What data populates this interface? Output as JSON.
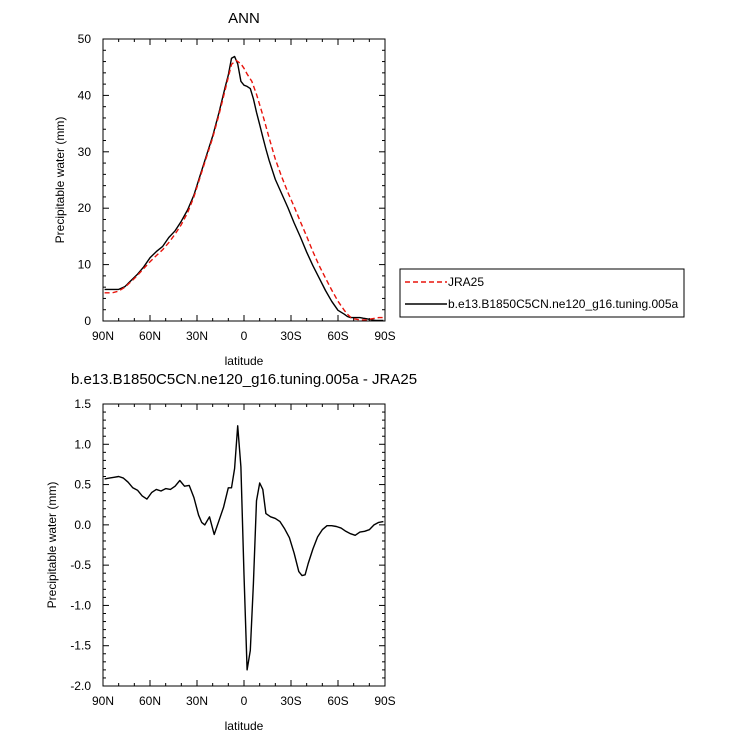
{
  "chart_data": [
    {
      "type": "line",
      "title": "ANN",
      "xlabel": "latitude",
      "ylabel": "Precipitable water (mm)",
      "xlim": [
        90,
        -90
      ],
      "ylim": [
        0,
        50
      ],
      "x_ticks": [
        90,
        60,
        30,
        0,
        -30,
        -60,
        -90
      ],
      "x_tick_labels": [
        "90N",
        "60N",
        "30N",
        "0",
        "30S",
        "60S",
        "90S"
      ],
      "y_ticks": [
        0,
        10,
        20,
        30,
        40,
        50
      ],
      "y_tick_labels": [
        "0",
        "10",
        "20",
        "30",
        "40",
        "50"
      ],
      "legend_position": "right",
      "series": [
        {
          "name": "JRA25",
          "color": "#e8140c",
          "dash": "dashed",
          "x": [
            89,
            84,
            80,
            76,
            72,
            68,
            64,
            60,
            56,
            52,
            48,
            44,
            40,
            36,
            32,
            28,
            24,
            20,
            16,
            12,
            8,
            5,
            2,
            0,
            -2,
            -5,
            -8,
            -12,
            -16,
            -20,
            -24,
            -28,
            -32,
            -36,
            -40,
            -44,
            -48,
            -52,
            -56,
            -60,
            -64,
            -66,
            -68,
            -70,
            -72,
            -74,
            -76,
            -78,
            -80,
            -82,
            -84,
            -86,
            -89
          ],
          "y": [
            5.0,
            5.0,
            5.3,
            6.0,
            7.0,
            8.1,
            9.3,
            10.5,
            11.6,
            12.6,
            13.9,
            15.4,
            17.1,
            19.2,
            22.0,
            25.5,
            29.0,
            32.5,
            36.5,
            41.0,
            45.5,
            46.2,
            45.6,
            44.8,
            43.8,
            42.5,
            40.2,
            36.5,
            32.5,
            28.7,
            25.6,
            22.8,
            20.3,
            17.6,
            15.0,
            12.3,
            9.8,
            7.6,
            5.5,
            3.5,
            1.9,
            1.2,
            0.7,
            0.4,
            0.3,
            0.2,
            0.2,
            0.2,
            0.3,
            0.4,
            0.5,
            0.6,
            0.6
          ]
        },
        {
          "name": "b.e13.B1850C5CN.ne120_g16.tuning.005a",
          "color": "#000000",
          "dash": "solid",
          "x": [
            89,
            84,
            80,
            76,
            72,
            68,
            64,
            60,
            56,
            52,
            48,
            44,
            40,
            36,
            32,
            28,
            24,
            20,
            16,
            12,
            10,
            8,
            6,
            4,
            2,
            0,
            -2,
            -4,
            -6,
            -8,
            -10,
            -12,
            -14,
            -16,
            -20,
            -24,
            -28,
            -32,
            -36,
            -40,
            -44,
            -48,
            -52,
            -56,
            -60,
            -64,
            -66,
            -68,
            -70,
            -72,
            -74,
            -76,
            -78,
            -80,
            -82,
            -84,
            -86,
            -89
          ],
          "y": [
            5.6,
            5.6,
            5.6,
            6.1,
            7.2,
            8.3,
            9.6,
            11.2,
            12.3,
            13.2,
            14.8,
            16.0,
            17.7,
            19.7,
            22.3,
            25.8,
            29.3,
            32.8,
            36.9,
            41.5,
            43.6,
            46.6,
            46.9,
            45.6,
            42.5,
            41.8,
            41.6,
            41.2,
            39.4,
            37.0,
            34.8,
            32.6,
            30.5,
            28.5,
            25.1,
            22.6,
            20.1,
            17.4,
            14.9,
            12.2,
            9.8,
            7.6,
            5.4,
            3.5,
            1.9,
            1.2,
            0.8,
            0.6,
            0.6,
            0.6,
            0.6,
            0.5,
            0.4,
            0.3,
            0.2,
            0.1,
            0.1,
            0.1
          ]
        }
      ]
    },
    {
      "type": "line",
      "title": "b.e13.B1850C5CN.ne120_g16.tuning.005a - JRA25",
      "xlabel": "latitude",
      "ylabel": "Precipitable water (mm)",
      "xlim": [
        90,
        -90
      ],
      "ylim": [
        -2.0,
        1.5
      ],
      "x_ticks": [
        90,
        60,
        30,
        0,
        -30,
        -60,
        -90
      ],
      "x_tick_labels": [
        "90N",
        "60N",
        "30N",
        "0",
        "30S",
        "60S",
        "90S"
      ],
      "y_ticks": [
        -2.0,
        -1.5,
        -1.0,
        -0.5,
        0.0,
        0.5,
        1.0,
        1.5
      ],
      "y_tick_labels": [
        "-2.0",
        "-1.5",
        "-1.0",
        "-0.5",
        "0.0",
        "0.5",
        "1.0",
        "1.5"
      ],
      "series": [
        {
          "color": "#000000",
          "dash": "solid",
          "x": [
            89,
            86,
            83,
            80,
            77,
            74,
            71,
            68,
            65,
            62,
            59,
            56,
            53,
            50,
            47,
            44,
            41,
            38,
            35,
            32,
            29,
            27,
            25,
            22,
            19,
            16,
            13,
            10,
            8,
            6,
            4,
            2,
            0,
            -2,
            -4,
            -6,
            -8,
            -10,
            -12,
            -14,
            -17,
            -20,
            -23,
            -26,
            -29,
            -32,
            -35,
            -37,
            -39,
            -41,
            -44,
            -47,
            -50,
            -53,
            -56,
            -59,
            -62,
            -65,
            -68,
            -71,
            -74,
            -77,
            -80,
            -83,
            -86,
            -89
          ],
          "y": [
            0.57,
            0.58,
            0.59,
            0.6,
            0.58,
            0.53,
            0.46,
            0.43,
            0.36,
            0.32,
            0.4,
            0.44,
            0.42,
            0.45,
            0.44,
            0.48,
            0.55,
            0.48,
            0.49,
            0.34,
            0.12,
            0.03,
            0.0,
            0.1,
            -0.12,
            0.05,
            0.22,
            0.46,
            0.46,
            0.7,
            1.23,
            0.72,
            -0.62,
            -1.8,
            -1.56,
            -0.73,
            0.3,
            0.52,
            0.44,
            0.14,
            0.1,
            0.08,
            0.04,
            -0.05,
            -0.16,
            -0.35,
            -0.58,
            -0.63,
            -0.62,
            -0.48,
            -0.3,
            -0.15,
            -0.06,
            -0.01,
            -0.01,
            -0.02,
            -0.04,
            -0.08,
            -0.11,
            -0.13,
            -0.09,
            -0.08,
            -0.06,
            0.0,
            0.03,
            0.04
          ]
        }
      ]
    }
  ]
}
